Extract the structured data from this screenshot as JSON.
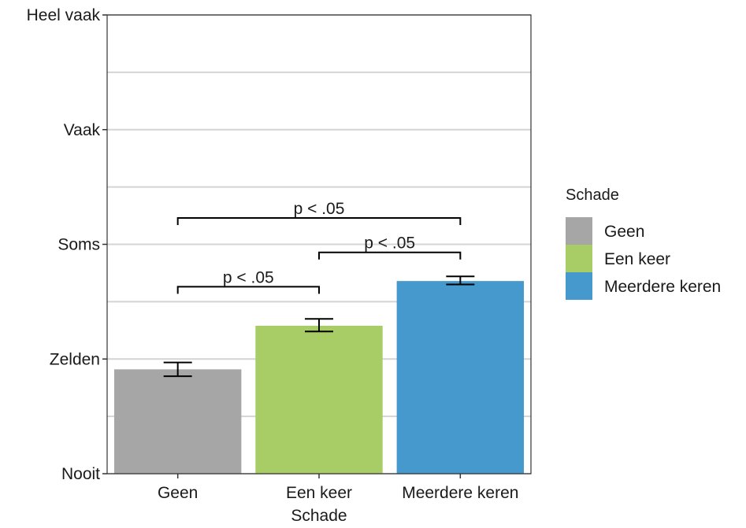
{
  "chart_data": {
    "type": "bar",
    "categories": [
      "Geen",
      "Een keer",
      "Meerdere keren"
    ],
    "values": [
      1.91,
      2.29,
      2.68
    ],
    "error_bars": [
      {
        "low": 1.85,
        "high": 1.97
      },
      {
        "low": 2.24,
        "high": 2.35
      },
      {
        "low": 2.65,
        "high": 2.72
      }
    ],
    "colors": [
      "#a6a6a6",
      "#a8cc66",
      "#4599cc"
    ],
    "xlabel": "Schade",
    "ylabel": "",
    "ylim": [
      1,
      5
    ],
    "y_ticks": [
      {
        "value": 1,
        "label": "Nooit"
      },
      {
        "value": 2,
        "label": "Zelden"
      },
      {
        "value": 3,
        "label": "Soms"
      },
      {
        "value": 4,
        "label": "Vaak"
      },
      {
        "value": 5,
        "label": "Heel vaak"
      }
    ],
    "grid": true,
    "significance": [
      {
        "from": 0,
        "to": 1,
        "label": "p < .05",
        "y": 2.63
      },
      {
        "from": 1,
        "to": 2,
        "label": "p < .05",
        "y": 2.93
      },
      {
        "from": 0,
        "to": 2,
        "label": "p < .05",
        "y": 3.23
      }
    ],
    "legend": {
      "title": "Schade",
      "placement": "right",
      "entries": [
        "Geen",
        "Een keer",
        "Meerdere keren"
      ]
    }
  }
}
